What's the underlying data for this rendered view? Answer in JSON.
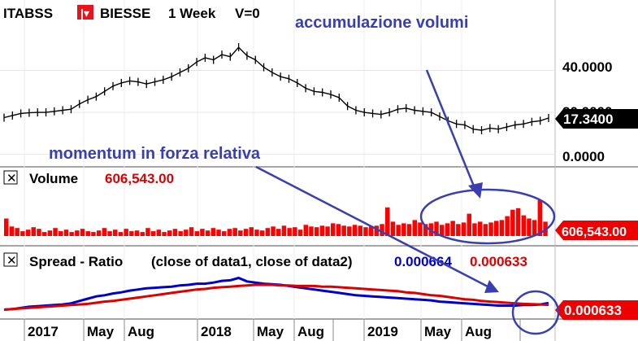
{
  "header": {
    "symbol": "ITABSS",
    "name": "BIESSE",
    "period": "1 Week",
    "v_label": "V=0"
  },
  "annotations": {
    "top_right": "accumulazione volumi",
    "left": "momentum in forza relativa"
  },
  "colors": {
    "price": "#000000",
    "volume": "#ff0000",
    "spread1": "#0000cc",
    "spread2": "#dd0000",
    "annotation": "#3a3fb0",
    "badge_price": "#000000",
    "badge_red": "#ee0000"
  },
  "chart_data": [
    {
      "type": "line",
      "panel": "price",
      "series": [
        {
          "name": "ITABSS",
          "values": [
            17.5,
            18.5,
            19.5,
            19.8,
            20.0,
            20.0,
            20.5,
            21.0,
            21.5,
            24.0,
            26.0,
            27.5,
            30.0,
            32.5,
            34.0,
            35.0,
            34.5,
            33.5,
            34.5,
            35.5,
            37.0,
            39.0,
            41.0,
            44.0,
            46.0,
            45.0,
            47.5,
            46.5,
            51.0,
            47.0,
            45.0,
            41.5,
            39.0,
            37.0,
            36.0,
            34.0,
            31.5,
            30.0,
            29.5,
            28.5,
            27.0,
            23.0,
            21.0,
            20.0,
            19.5,
            19.0,
            20.0,
            21.5,
            22.0,
            21.0,
            20.5,
            20.0,
            18.0,
            16.0,
            14.5,
            14.0,
            12.0,
            11.5,
            12.5,
            12.0,
            13.0,
            14.0,
            14.5,
            15.5,
            16.0,
            17.3
          ]
        }
      ],
      "y_ticks": [
        "40.0000",
        "20.0000",
        "0.0000"
      ],
      "ylim": [
        -4,
        58
      ],
      "last_value": "17.3400"
    },
    {
      "type": "bar",
      "panel": "volume",
      "title": "Volume",
      "value_label": "606,543.00",
      "last_value": "606,543.00",
      "series": [
        {
          "name": "Volume",
          "values": [
            2.2,
            1.2,
            1.0,
            0.6,
            0.8,
            1.1,
            0.9,
            0.5,
            0.7,
            1.0,
            0.6,
            0.8,
            0.5,
            0.7,
            0.9,
            0.6,
            0.5,
            0.7,
            1.0,
            0.6,
            0.8,
            0.5,
            0.9,
            0.6,
            0.7,
            0.5,
            1.0,
            0.6,
            0.8,
            0.5,
            0.7,
            0.9,
            0.6,
            0.8,
            1.1,
            0.6,
            0.9,
            0.7,
            1.0,
            0.8,
            0.6,
            0.9,
            1.0,
            0.7,
            0.9,
            1.1,
            0.8,
            0.7,
            1.0,
            1.2,
            0.9,
            1.3,
            1.0,
            1.1,
            0.8,
            1.4,
            1.2,
            1.1,
            1.3,
            1.2,
            1.6,
            1.5,
            1.3,
            1.2,
            1.4,
            1.3,
            1.1,
            1.2,
            1.3,
            1.5,
            3.6,
            1.8,
            1.4,
            1.6,
            1.5,
            2.0,
            1.7,
            1.5,
            1.6,
            1.8,
            1.4,
            1.6,
            1.9,
            1.5,
            1.7,
            2.8,
            1.6,
            1.8,
            1.5,
            1.7,
            1.9,
            2.0,
            2.5,
            3.3,
            3.5,
            2.6,
            2.2,
            2.0,
            4.5,
            1.8
          ]
        }
      ]
    },
    {
      "type": "line",
      "panel": "spread",
      "title": "Spread - Ratio",
      "params": "(close of data1,  close of data2)",
      "value1": "0.000664",
      "value2": "0.000633",
      "last_value": "0.000633",
      "series": [
        {
          "name": "close of data1",
          "values": [
            0.55,
            0.56,
            0.58,
            0.6,
            0.61,
            0.62,
            0.63,
            0.64,
            0.66,
            0.7,
            0.74,
            0.78,
            0.8,
            0.83,
            0.85,
            0.88,
            0.9,
            0.92,
            0.93,
            0.94,
            0.95,
            0.97,
            0.98,
            1.0,
            1.0,
            1.02,
            1.05,
            1.06,
            1.1,
            1.04,
            1.02,
            1.0,
            0.99,
            0.98,
            0.96,
            0.94,
            0.92,
            0.9,
            0.88,
            0.86,
            0.84,
            0.82,
            0.8,
            0.79,
            0.78,
            0.77,
            0.76,
            0.75,
            0.74,
            0.73,
            0.72,
            0.71,
            0.69,
            0.68,
            0.67,
            0.66,
            0.65,
            0.64,
            0.63,
            0.62,
            0.62,
            0.62,
            0.63,
            0.63,
            0.64,
            0.664
          ]
        },
        {
          "name": "close of data2",
          "values": [
            0.55,
            0.56,
            0.57,
            0.58,
            0.59,
            0.6,
            0.61,
            0.62,
            0.63,
            0.64,
            0.65,
            0.67,
            0.69,
            0.7,
            0.72,
            0.74,
            0.76,
            0.78,
            0.8,
            0.82,
            0.84,
            0.86,
            0.88,
            0.9,
            0.91,
            0.93,
            0.94,
            0.95,
            0.96,
            0.97,
            0.98,
            0.98,
            0.98,
            0.97,
            0.97,
            0.96,
            0.96,
            0.96,
            0.95,
            0.95,
            0.94,
            0.93,
            0.92,
            0.91,
            0.9,
            0.89,
            0.88,
            0.87,
            0.85,
            0.84,
            0.82,
            0.8,
            0.79,
            0.77,
            0.75,
            0.73,
            0.72,
            0.7,
            0.69,
            0.68,
            0.67,
            0.66,
            0.65,
            0.645,
            0.64,
            0.633
          ]
        }
      ]
    }
  ],
  "x_axis": {
    "labels": [
      "2017",
      "May",
      "Aug",
      "2018",
      "May",
      "Aug",
      "2019",
      "May",
      "Aug"
    ]
  }
}
